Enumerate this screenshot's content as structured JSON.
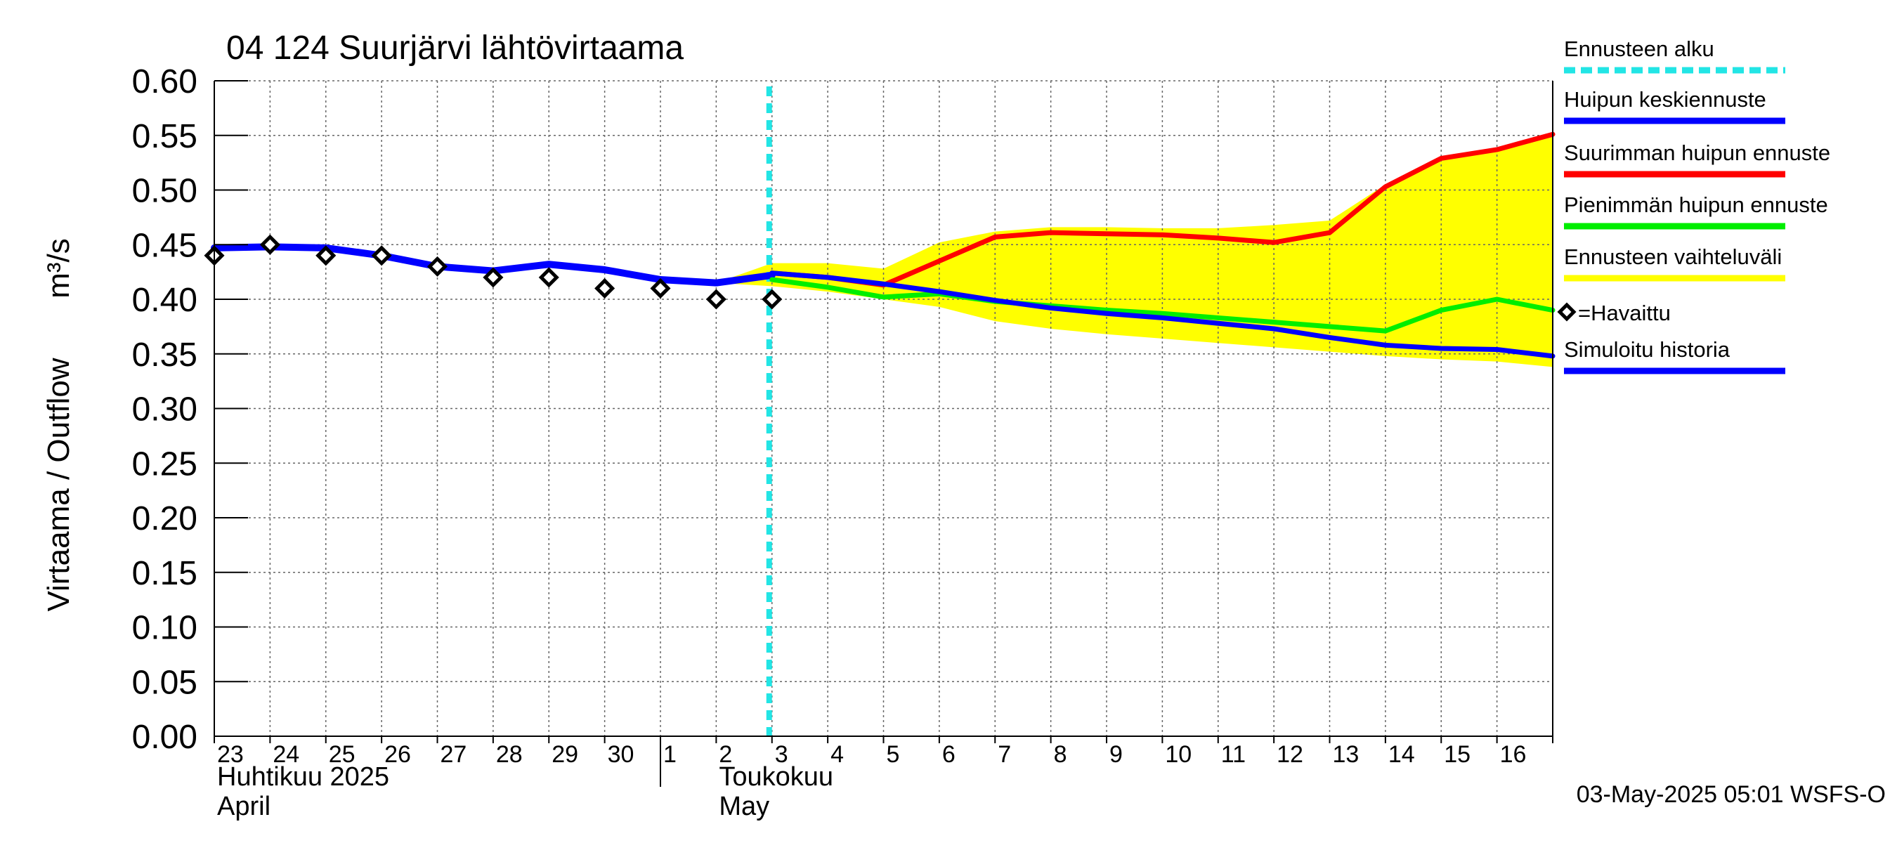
{
  "chart_data": {
    "type": "line",
    "title": "04 124 Suurjärvi lähtövirtaama",
    "ylabel_left": "Virtaama / Outflow",
    "ylabel_unit": "m³/s",
    "ylim": [
      0.0,
      0.6
    ],
    "y_ticks": [
      "0.00",
      "0.05",
      "0.10",
      "0.15",
      "0.20",
      "0.25",
      "0.30",
      "0.35",
      "0.40",
      "0.45",
      "0.50",
      "0.55",
      "0.60"
    ],
    "x_range": [
      0,
      24
    ],
    "x_day_labels": [
      {
        "x": 0,
        "label": "23"
      },
      {
        "x": 1,
        "label": "24"
      },
      {
        "x": 2,
        "label": "25"
      },
      {
        "x": 3,
        "label": "26"
      },
      {
        "x": 4,
        "label": "27"
      },
      {
        "x": 5,
        "label": "28"
      },
      {
        "x": 6,
        "label": "29"
      },
      {
        "x": 7,
        "label": "30"
      },
      {
        "x": 8,
        "label": "1"
      },
      {
        "x": 9,
        "label": "2"
      },
      {
        "x": 10,
        "label": "3"
      },
      {
        "x": 11,
        "label": "4"
      },
      {
        "x": 12,
        "label": "5"
      },
      {
        "x": 13,
        "label": "6"
      },
      {
        "x": 14,
        "label": "7"
      },
      {
        "x": 15,
        "label": "8"
      },
      {
        "x": 16,
        "label": "9"
      },
      {
        "x": 17,
        "label": "10"
      },
      {
        "x": 18,
        "label": "11"
      },
      {
        "x": 19,
        "label": "12"
      },
      {
        "x": 20,
        "label": "13"
      },
      {
        "x": 21,
        "label": "14"
      },
      {
        "x": 22,
        "label": "15"
      },
      {
        "x": 23,
        "label": "16"
      }
    ],
    "month_labels": [
      {
        "x": 0,
        "line1": "Huhtikuu  2025",
        "line2": "April"
      },
      {
        "x": 9,
        "line1": "Toukokuu",
        "line2": "May"
      }
    ],
    "month_divider_x": 8,
    "forecast_start_x": 10,
    "band": {
      "name": "Ennusteen vaihteluväli",
      "color": "#ffff00",
      "upper": [
        [
          9,
          0.415
        ],
        [
          10,
          0.433
        ],
        [
          11,
          0.433
        ],
        [
          12,
          0.428
        ],
        [
          13,
          0.452
        ],
        [
          14,
          0.462
        ],
        [
          15,
          0.466
        ],
        [
          16,
          0.466
        ],
        [
          17,
          0.465
        ],
        [
          18,
          0.465
        ],
        [
          19,
          0.468
        ],
        [
          20,
          0.472
        ],
        [
          21,
          0.505
        ],
        [
          22,
          0.53
        ],
        [
          23,
          0.538
        ],
        [
          24,
          0.552
        ]
      ],
      "lower": [
        [
          24,
          0.338
        ],
        [
          23,
          0.343
        ],
        [
          22,
          0.345
        ],
        [
          21,
          0.348
        ],
        [
          20,
          0.352
        ],
        [
          19,
          0.356
        ],
        [
          18,
          0.36
        ],
        [
          17,
          0.364
        ],
        [
          16,
          0.368
        ],
        [
          15,
          0.373
        ],
        [
          14,
          0.38
        ],
        [
          13,
          0.393
        ],
        [
          12,
          0.4
        ],
        [
          11,
          0.407
        ],
        [
          10,
          0.412
        ],
        [
          9,
          0.415
        ]
      ]
    },
    "series": [
      {
        "name": "Simuloitu historia",
        "color": "#0000ff",
        "width": 10,
        "points": [
          [
            0,
            0.447
          ],
          [
            1,
            0.448
          ],
          [
            2,
            0.447
          ],
          [
            3,
            0.44
          ],
          [
            4,
            0.43
          ],
          [
            5,
            0.426
          ],
          [
            6,
            0.432
          ],
          [
            7,
            0.427
          ],
          [
            8,
            0.418
          ],
          [
            9,
            0.415
          ],
          [
            10,
            0.422
          ]
        ]
      },
      {
        "name": "Pienimmän huipun ennuste",
        "color": "#00ee00",
        "width": 7,
        "points": [
          [
            10,
            0.418
          ],
          [
            11,
            0.411
          ],
          [
            12,
            0.402
          ],
          [
            13,
            0.405
          ],
          [
            14,
            0.398
          ],
          [
            15,
            0.394
          ],
          [
            16,
            0.39
          ],
          [
            17,
            0.387
          ],
          [
            18,
            0.383
          ],
          [
            19,
            0.379
          ],
          [
            20,
            0.375
          ],
          [
            21,
            0.371
          ],
          [
            22,
            0.39
          ],
          [
            23,
            0.4
          ],
          [
            24,
            0.39
          ]
        ]
      },
      {
        "name": "Suurimman huipun ennuste",
        "color": "#ff0000",
        "width": 7,
        "points": [
          [
            10,
            0.424
          ],
          [
            11,
            0.42
          ],
          [
            12,
            0.413
          ],
          [
            13,
            0.435
          ],
          [
            14,
            0.457
          ],
          [
            15,
            0.461
          ],
          [
            16,
            0.46
          ],
          [
            17,
            0.459
          ],
          [
            18,
            0.456
          ],
          [
            19,
            0.452
          ],
          [
            20,
            0.461
          ],
          [
            21,
            0.503
          ],
          [
            22,
            0.529
          ],
          [
            23,
            0.537
          ],
          [
            24,
            0.551
          ]
        ]
      },
      {
        "name": "Huipun keskiennuste",
        "color": "#0000ff",
        "width": 7,
        "points": [
          [
            10,
            0.424
          ],
          [
            11,
            0.42
          ],
          [
            12,
            0.414
          ],
          [
            13,
            0.407
          ],
          [
            14,
            0.399
          ],
          [
            15,
            0.392
          ],
          [
            16,
            0.387
          ],
          [
            17,
            0.383
          ],
          [
            18,
            0.378
          ],
          [
            19,
            0.373
          ],
          [
            20,
            0.365
          ],
          [
            21,
            0.358
          ],
          [
            22,
            0.355
          ],
          [
            23,
            0.354
          ],
          [
            24,
            0.348
          ]
        ]
      }
    ],
    "observed": {
      "name": "=Havaittu",
      "points": [
        [
          0,
          0.44
        ],
        [
          1,
          0.45
        ],
        [
          2,
          0.44
        ],
        [
          3,
          0.44
        ],
        [
          4,
          0.43
        ],
        [
          5,
          0.42
        ],
        [
          6,
          0.42
        ],
        [
          7,
          0.41
        ],
        [
          8,
          0.41
        ],
        [
          9,
          0.4
        ],
        [
          10,
          0.4
        ]
      ]
    },
    "legend": [
      {
        "label": "Ennusteen alku",
        "color": "#22e5e5",
        "style": "dashed"
      },
      {
        "label": "Huipun keskiennuste",
        "color": "#0000ff",
        "style": "solid"
      },
      {
        "label": "Suurimman huipun ennuste",
        "color": "#ff0000",
        "style": "solid"
      },
      {
        "label": "Pienimmän huipun ennuste",
        "color": "#00ee00",
        "style": "solid"
      },
      {
        "label": "Ennusteen vaihteluväli",
        "color": "#ffff00",
        "style": "solid"
      },
      {
        "label": "=Havaittu",
        "color": "#000000",
        "style": "marker"
      },
      {
        "label": "Simuloitu historia",
        "color": "#0000ff",
        "style": "solid"
      }
    ],
    "footer": "03-May-2025 05:01 WSFS-O"
  }
}
